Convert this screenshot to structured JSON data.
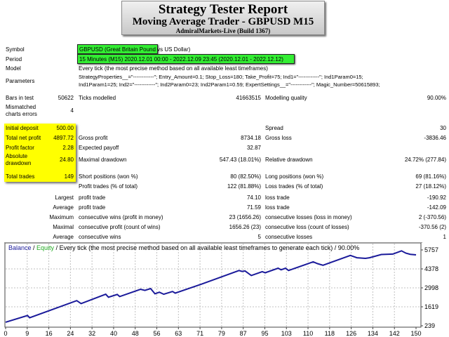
{
  "header": {
    "title": "Strategy Tester Report",
    "subtitle": "Moving Average Trader - GBPUSD M15",
    "server": "AdmiralMarkets-Live (Build 1367)"
  },
  "info": {
    "symbol_label": "Symbol",
    "symbol": "GBPUSD (Great Britain Pound vs US Dollar)",
    "period_label": "Period",
    "period": "15 Minutes (M15) 2020.12.01 00:00 - 2022.12.09 23:45 (2020.12.01 - 2022.12.12)",
    "model_label": "Model",
    "model": "Every tick (the most precise method based on all available least timeframes)",
    "parameters_label": "Parameters",
    "parameters_line1": "StrategyProperties__=\"------------\"; Entry_Amount=0.1; Stop_Loss=180; Take_Profit=75; Ind1=\"------------\"; Ind1Param0=15;",
    "parameters_line2": "Ind1Param1=25; Ind2=\"------------\"; Ind2Param0=23; Ind2Param1=0.59; ExpertSettings__=\"------------\"; Magic_Number=50615893;",
    "bars_label": "Bars in test",
    "bars": "50622",
    "ticks_label": "Ticks modelled",
    "ticks": "41663515",
    "quality_label": "Modelling quality",
    "quality": "90.00%",
    "mismatch_label1": "Mismatched",
    "mismatch_label2": "charts errors",
    "mismatch": "4"
  },
  "stats": {
    "initial_deposit_label": "Initial deposit",
    "initial_deposit": "500.00",
    "spread_label": "Spread",
    "spread": "30",
    "net_profit_label": "Total net profit",
    "net_profit": "4897.72",
    "gross_profit_label": "Gross profit",
    "gross_profit": "8734.18",
    "gross_loss_label": "Gross loss",
    "gross_loss": "-3836.46",
    "profit_factor_label": "Profit factor",
    "profit_factor": "2.28",
    "expected_payoff_label": "Expected payoff",
    "expected_payoff": "32.87",
    "abs_dd_label1": "Absolute",
    "abs_dd_label2": "drawdown",
    "abs_dd": "24.80",
    "max_dd_label": "Maximal drawdown",
    "max_dd": "547.43 (18.01%)",
    "rel_dd_label": "Relative drawdown",
    "rel_dd": "24.72% (277.84)",
    "total_trades_label": "Total trades",
    "total_trades": "149",
    "short_label": "Short positions (won %)",
    "short": "80 (82.50%)",
    "long_label": "Long positions (won %)",
    "long": "69 (81.16%)",
    "profit_trades_label": "Profit trades (% of total)",
    "profit_trades": "122 (81.88%)",
    "loss_trades_label": "Loss trades (% of total)",
    "loss_trades": "27 (18.12%)",
    "largest_label": "Largest",
    "largest_profit_label": "profit trade",
    "largest_profit": "74.10",
    "largest_loss_label": "loss trade",
    "largest_loss": "-190.92",
    "average_label": "Average",
    "average_profit_label": "profit trade",
    "average_profit": "71.59",
    "average_loss_label": "loss trade",
    "average_loss": "-142.09",
    "maximum_label": "Maximum",
    "max_wins_label": "consecutive wins (profit in money)",
    "max_wins": "23 (1656.26)",
    "max_losses_label": "consecutive losses (loss in money)",
    "max_losses": "2 (-370.56)",
    "maximal_label": "Maximal",
    "maximal_profit_label": "consecutive profit (count of wins)",
    "maximal_profit": "1656.26 (23)",
    "maximal_loss_label": "consecutive loss (count of losses)",
    "maximal_loss": "-370.56 (2)",
    "avg_cons_label": "Average",
    "avg_wins_label": "consecutive wins",
    "avg_wins": "5",
    "avg_losses_label": "consecutive losses",
    "avg_losses": "1"
  },
  "chart_data": {
    "type": "line",
    "legend_balance": "Balance",
    "legend_sep1": " / ",
    "legend_equity": "Equity",
    "legend_rest": " / Every tick (the most precise method based on all available least timeframes to generate each tick) / 90.00%",
    "colors": {
      "balance": "#1a1a9a",
      "equity": "#22aa22",
      "grid": "#c0c0c0"
    },
    "xlim": [
      0,
      150
    ],
    "ylim": [
      239,
      5757
    ],
    "x_ticks": [
      "0",
      "9",
      "16",
      "24",
      "32",
      "40",
      "48",
      "56",
      "63",
      "71",
      "79",
      "87",
      "95",
      "103",
      "110",
      "118",
      "126",
      "134",
      "142",
      "150"
    ],
    "y_ticks": [
      "5757",
      "4378",
      "2998",
      "1619",
      "239"
    ],
    "series": [
      {
        "name": "Balance",
        "points": [
          [
            0,
            500
          ],
          [
            8,
            987
          ],
          [
            8.8,
            820
          ],
          [
            26,
            2067
          ],
          [
            27.6,
            1851
          ],
          [
            36.6,
            2533
          ],
          [
            37.6,
            2317
          ],
          [
            40.8,
            2516
          ],
          [
            41.7,
            2366
          ],
          [
            49.3,
            2898
          ],
          [
            50.9,
            2815
          ],
          [
            53,
            2948
          ],
          [
            54.6,
            2566
          ],
          [
            56.2,
            2682
          ],
          [
            57.8,
            2533
          ],
          [
            61,
            2732
          ],
          [
            62,
            2616
          ],
          [
            71.5,
            3264
          ],
          [
            85.3,
            4261
          ],
          [
            86.4,
            4195
          ],
          [
            87.5,
            4228
          ],
          [
            89.8,
            3895
          ],
          [
            93.8,
            4178
          ],
          [
            94.9,
            4095
          ],
          [
            99.6,
            4427
          ],
          [
            100.7,
            4311
          ],
          [
            102.3,
            4427
          ],
          [
            103.4,
            4261
          ],
          [
            112.4,
            4893
          ],
          [
            114,
            4760
          ],
          [
            116,
            4643
          ],
          [
            126,
            5358
          ],
          [
            128.4,
            5192
          ],
          [
            131.5,
            5142
          ],
          [
            133,
            5192
          ],
          [
            137.3,
            5424
          ],
          [
            141.5,
            5457
          ],
          [
            144.7,
            5690
          ],
          [
            146.3,
            5524
          ],
          [
            147.9,
            5441
          ],
          [
            150,
            5398
          ]
        ]
      }
    ]
  }
}
